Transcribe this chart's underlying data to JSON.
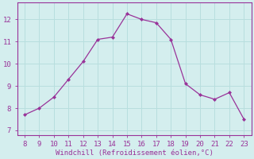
{
  "x": [
    8,
    9,
    10,
    11,
    12,
    13,
    14,
    15,
    16,
    17,
    18,
    19,
    20,
    21,
    22,
    23
  ],
  "y": [
    7.7,
    8.0,
    8.5,
    9.3,
    10.1,
    11.1,
    11.2,
    12.25,
    12.0,
    11.85,
    11.1,
    9.1,
    8.6,
    8.4,
    8.7,
    7.5
  ],
  "line_color": "#993399",
  "marker_color": "#993399",
  "bg_color": "#d4eeee",
  "grid_color": "#b8dede",
  "xlabel": "Windchill (Refroidissement éolien,°C)",
  "xlabel_color": "#993399",
  "tick_color": "#993399",
  "spine_color": "#993399",
  "xlim": [
    7.5,
    23.5
  ],
  "ylim": [
    6.8,
    12.75
  ],
  "xticks": [
    8,
    9,
    10,
    11,
    12,
    13,
    14,
    15,
    16,
    17,
    18,
    19,
    20,
    21,
    22,
    23
  ],
  "yticks": [
    7,
    8,
    9,
    10,
    11,
    12
  ],
  "tick_fontsize": 6.5,
  "xlabel_fontsize": 6.5
}
